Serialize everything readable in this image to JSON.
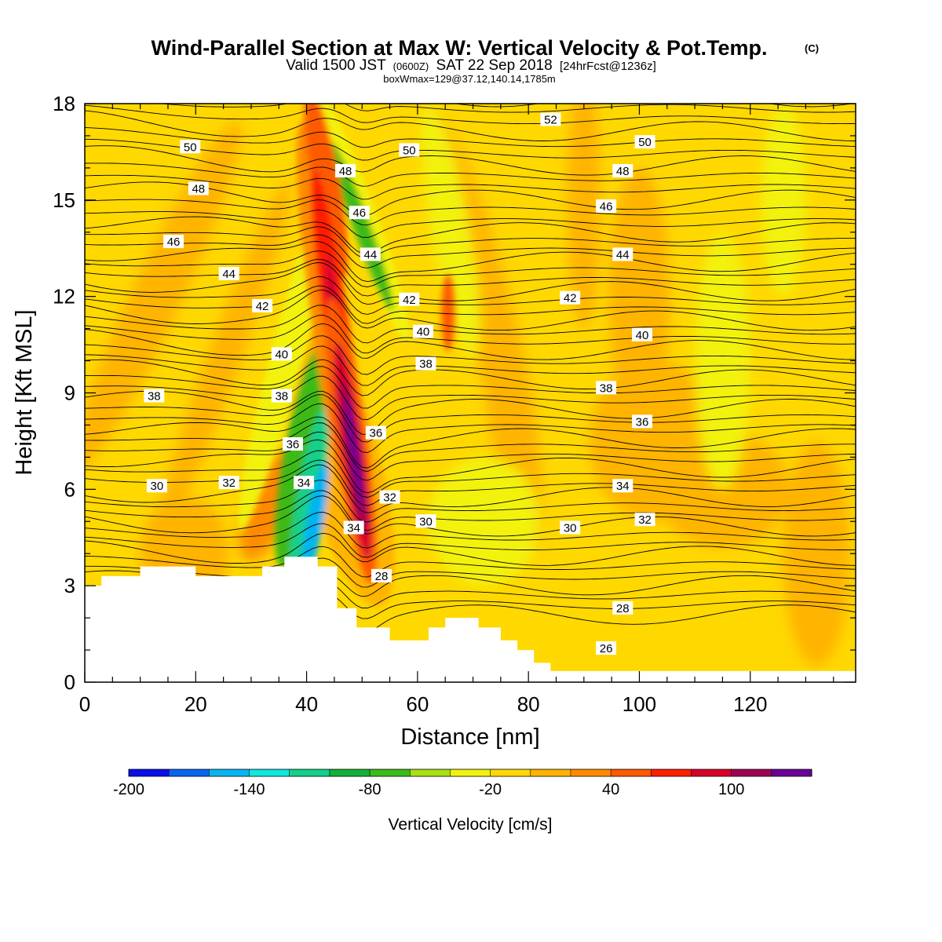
{
  "title": "Wind-Parallel Section at Max W: Vertical Velocity & Pot.Temp.",
  "title_copyright": "(C)",
  "subtitle_a": "Valid 1500 JST",
  "subtitle_b": "(0600Z)",
  "subtitle_c": "SAT 22 Sep 2018",
  "subtitle_d": "[24hrFcst@1236z]",
  "subtitle2": "boxWmax=129@37.12,140.14,1785m",
  "chart_data": {
    "type": "heatmap",
    "xlabel": "Distance [nm]",
    "ylabel": "Height [Kft MSL]",
    "xlim": [
      0,
      139
    ],
    "ylim": [
      0,
      18
    ],
    "x_ticks": [
      0,
      20,
      40,
      60,
      80,
      100,
      120
    ],
    "y_ticks": [
      0,
      3,
      6,
      9,
      12,
      15,
      18
    ],
    "x_tick_labels": [
      "0",
      "20",
      "40",
      "60",
      "80",
      "100",
      "120"
    ],
    "y_tick_labels": [
      "0",
      "3",
      "6",
      "9",
      "12",
      "15",
      "18"
    ],
    "colorbar": {
      "title": "Vertical Velocity [cm/s]",
      "boundaries": [
        -200,
        -180,
        -160,
        -140,
        -120,
        -100,
        -80,
        -60,
        -40,
        -20,
        0,
        20,
        40,
        60,
        80,
        100,
        120,
        140
      ],
      "colors": [
        "#0a10e8",
        "#0a64f2",
        "#06b4f2",
        "#12e6e0",
        "#12d08a",
        "#14b038",
        "#3cba18",
        "#a8e016",
        "#f2f20e",
        "#ffd800",
        "#ffb400",
        "#ff8a00",
        "#ff5a00",
        "#ff1e00",
        "#d8002a",
        "#a00056",
        "#6a0096"
      ],
      "tick_values": [
        -200,
        -140,
        -80,
        -20,
        40,
        100
      ],
      "tick_labels": [
        "-200",
        "-140",
        "-80",
        "-20",
        "40",
        "100"
      ]
    },
    "field_features": [
      {
        "kind": "downdraft",
        "x": 42,
        "y": 5.0,
        "w_min": -150
      },
      {
        "kind": "updraft",
        "x": 48.5,
        "y": 7.0,
        "w_max": 129
      },
      {
        "kind": "updraft-column",
        "x": 45,
        "y": 11,
        "w": 80
      },
      {
        "kind": "downdraft-band",
        "x": 49,
        "y": 15,
        "w": -60
      }
    ],
    "terrain_profile": {
      "x": [
        0,
        3,
        3,
        10,
        10,
        20,
        20,
        32,
        32,
        36,
        36,
        42,
        42,
        45.5,
        45.5,
        49,
        49,
        55,
        55,
        62,
        62,
        65,
        65,
        71,
        71,
        75,
        75,
        78,
        78,
        81,
        81,
        84,
        84,
        139
      ],
      "height_kft": [
        3.0,
        3.0,
        3.3,
        3.3,
        3.6,
        3.6,
        3.3,
        3.3,
        3.6,
        3.6,
        3.9,
        3.9,
        3.6,
        3.6,
        2.3,
        2.3,
        1.7,
        1.7,
        1.3,
        1.3,
        1.7,
        1.7,
        2.0,
        2.0,
        1.7,
        1.7,
        1.3,
        1.3,
        1.0,
        1.0,
        0.6,
        0.6,
        0.35,
        0.35
      ]
    },
    "contour_labels": [
      {
        "text": "52",
        "x": 84,
        "y": 17.5
      },
      {
        "text": "50",
        "x": 19,
        "y": 16.65
      },
      {
        "text": "50",
        "x": 58.5,
        "y": 16.55
      },
      {
        "text": "50",
        "x": 101,
        "y": 16.8
      },
      {
        "text": "48",
        "x": 20.5,
        "y": 15.35
      },
      {
        "text": "48",
        "x": 47,
        "y": 15.9
      },
      {
        "text": "48",
        "x": 97,
        "y": 15.9
      },
      {
        "text": "46",
        "x": 16,
        "y": 13.7
      },
      {
        "text": "46",
        "x": 49.5,
        "y": 14.6
      },
      {
        "text": "46",
        "x": 94,
        "y": 14.8
      },
      {
        "text": "44",
        "x": 26,
        "y": 12.7
      },
      {
        "text": "44",
        "x": 51.5,
        "y": 13.3
      },
      {
        "text": "44",
        "x": 97,
        "y": 13.3
      },
      {
        "text": "42",
        "x": 32,
        "y": 11.7
      },
      {
        "text": "42",
        "x": 58.5,
        "y": 11.9
      },
      {
        "text": "42",
        "x": 87.5,
        "y": 11.95
      },
      {
        "text": "40",
        "x": 35.5,
        "y": 10.2
      },
      {
        "text": "40",
        "x": 61,
        "y": 10.9
      },
      {
        "text": "40",
        "x": 100.5,
        "y": 10.8
      },
      {
        "text": "38",
        "x": 12.5,
        "y": 8.9
      },
      {
        "text": "38",
        "x": 35.5,
        "y": 8.9
      },
      {
        "text": "38",
        "x": 61.5,
        "y": 9.9
      },
      {
        "text": "38",
        "x": 94,
        "y": 9.15
      },
      {
        "text": "36",
        "x": 37.5,
        "y": 7.4
      },
      {
        "text": "36",
        "x": 52.5,
        "y": 7.75
      },
      {
        "text": "36",
        "x": 100.5,
        "y": 8.1
      },
      {
        "text": "34",
        "x": 39.5,
        "y": 6.2
      },
      {
        "text": "34",
        "x": 48.5,
        "y": 4.8
      },
      {
        "text": "34",
        "x": 97,
        "y": 6.1
      },
      {
        "text": "32",
        "x": 26,
        "y": 6.2
      },
      {
        "text": "32",
        "x": 55,
        "y": 5.75
      },
      {
        "text": "32",
        "x": 101,
        "y": 5.05
      },
      {
        "text": "30",
        "x": 13,
        "y": 6.1
      },
      {
        "text": "30",
        "x": 61.5,
        "y": 5.0
      },
      {
        "text": "30",
        "x": 87.5,
        "y": 4.8
      },
      {
        "text": "28",
        "x": 53.5,
        "y": 3.3
      },
      {
        "text": "28",
        "x": 97,
        "y": 2.3
      },
      {
        "text": "26",
        "x": 94,
        "y": 1.05
      }
    ]
  }
}
